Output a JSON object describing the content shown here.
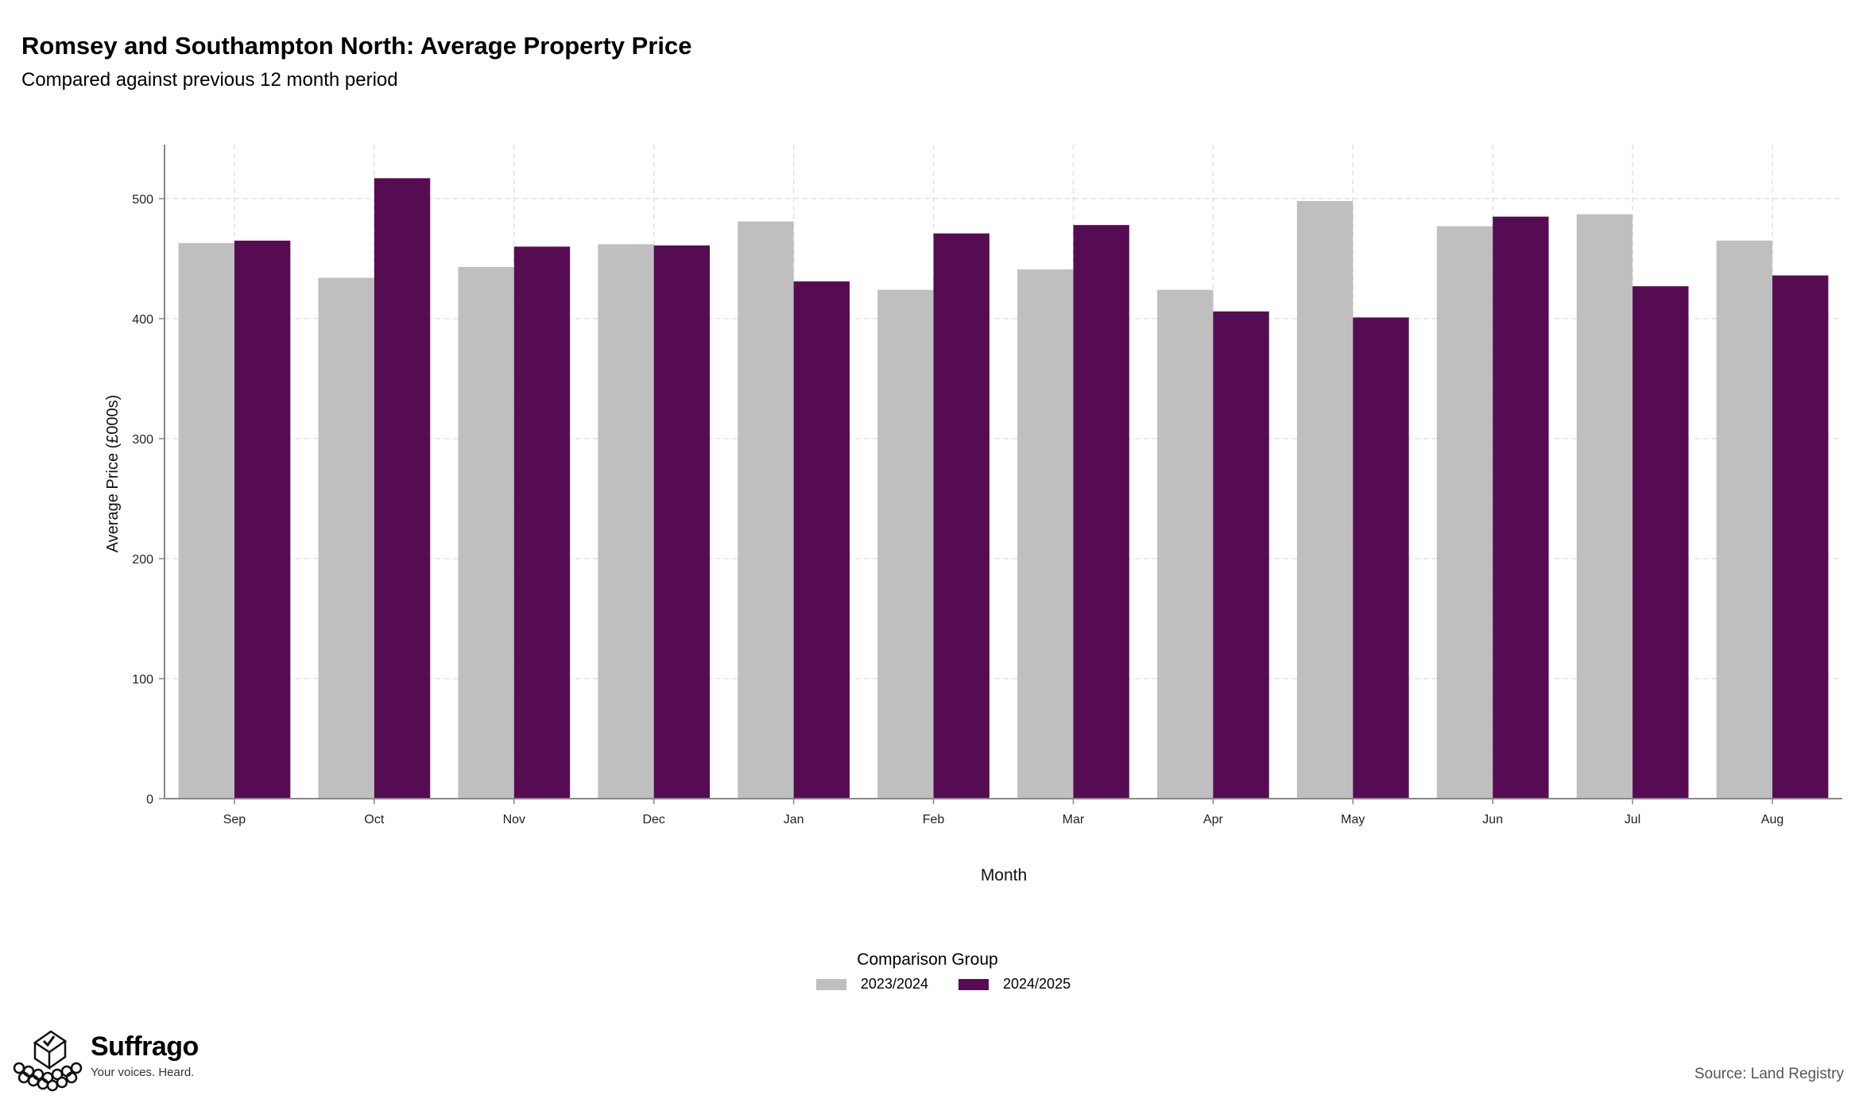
{
  "title": "Romsey and Southampton North: Average Property Price",
  "subtitle": "Compared against previous 12 month period",
  "brand": {
    "name": "Suffrago",
    "tagline": "Your voices. Heard.",
    "logo": "ballot-box-crowd-icon"
  },
  "source": "Source: Land Registry",
  "colors": {
    "2023/2024": "#bfbfbf",
    "2024/2025": "#560c52",
    "grid": "#dddddd",
    "axis": "#888888"
  },
  "chart_data": {
    "type": "bar",
    "xlabel": "Month",
    "ylabel": "Average Price (£000s)",
    "ylim": [
      0,
      545
    ],
    "yticks": [
      0,
      100,
      200,
      300,
      400,
      500
    ],
    "categories": [
      "Sep",
      "Oct",
      "Nov",
      "Dec",
      "Jan",
      "Feb",
      "Mar",
      "Apr",
      "May",
      "Jun",
      "Jul",
      "Aug"
    ],
    "legend_title": "Comparison Group",
    "legend_position": "bottom",
    "grid": true,
    "series": [
      {
        "name": "2023/2024",
        "values": [
          463,
          434,
          443,
          462,
          481,
          424,
          441,
          424,
          498,
          477,
          487,
          465
        ]
      },
      {
        "name": "2024/2025",
        "values": [
          465,
          517,
          460,
          461,
          431,
          471,
          478,
          406,
          401,
          485,
          427,
          436
        ]
      }
    ]
  }
}
